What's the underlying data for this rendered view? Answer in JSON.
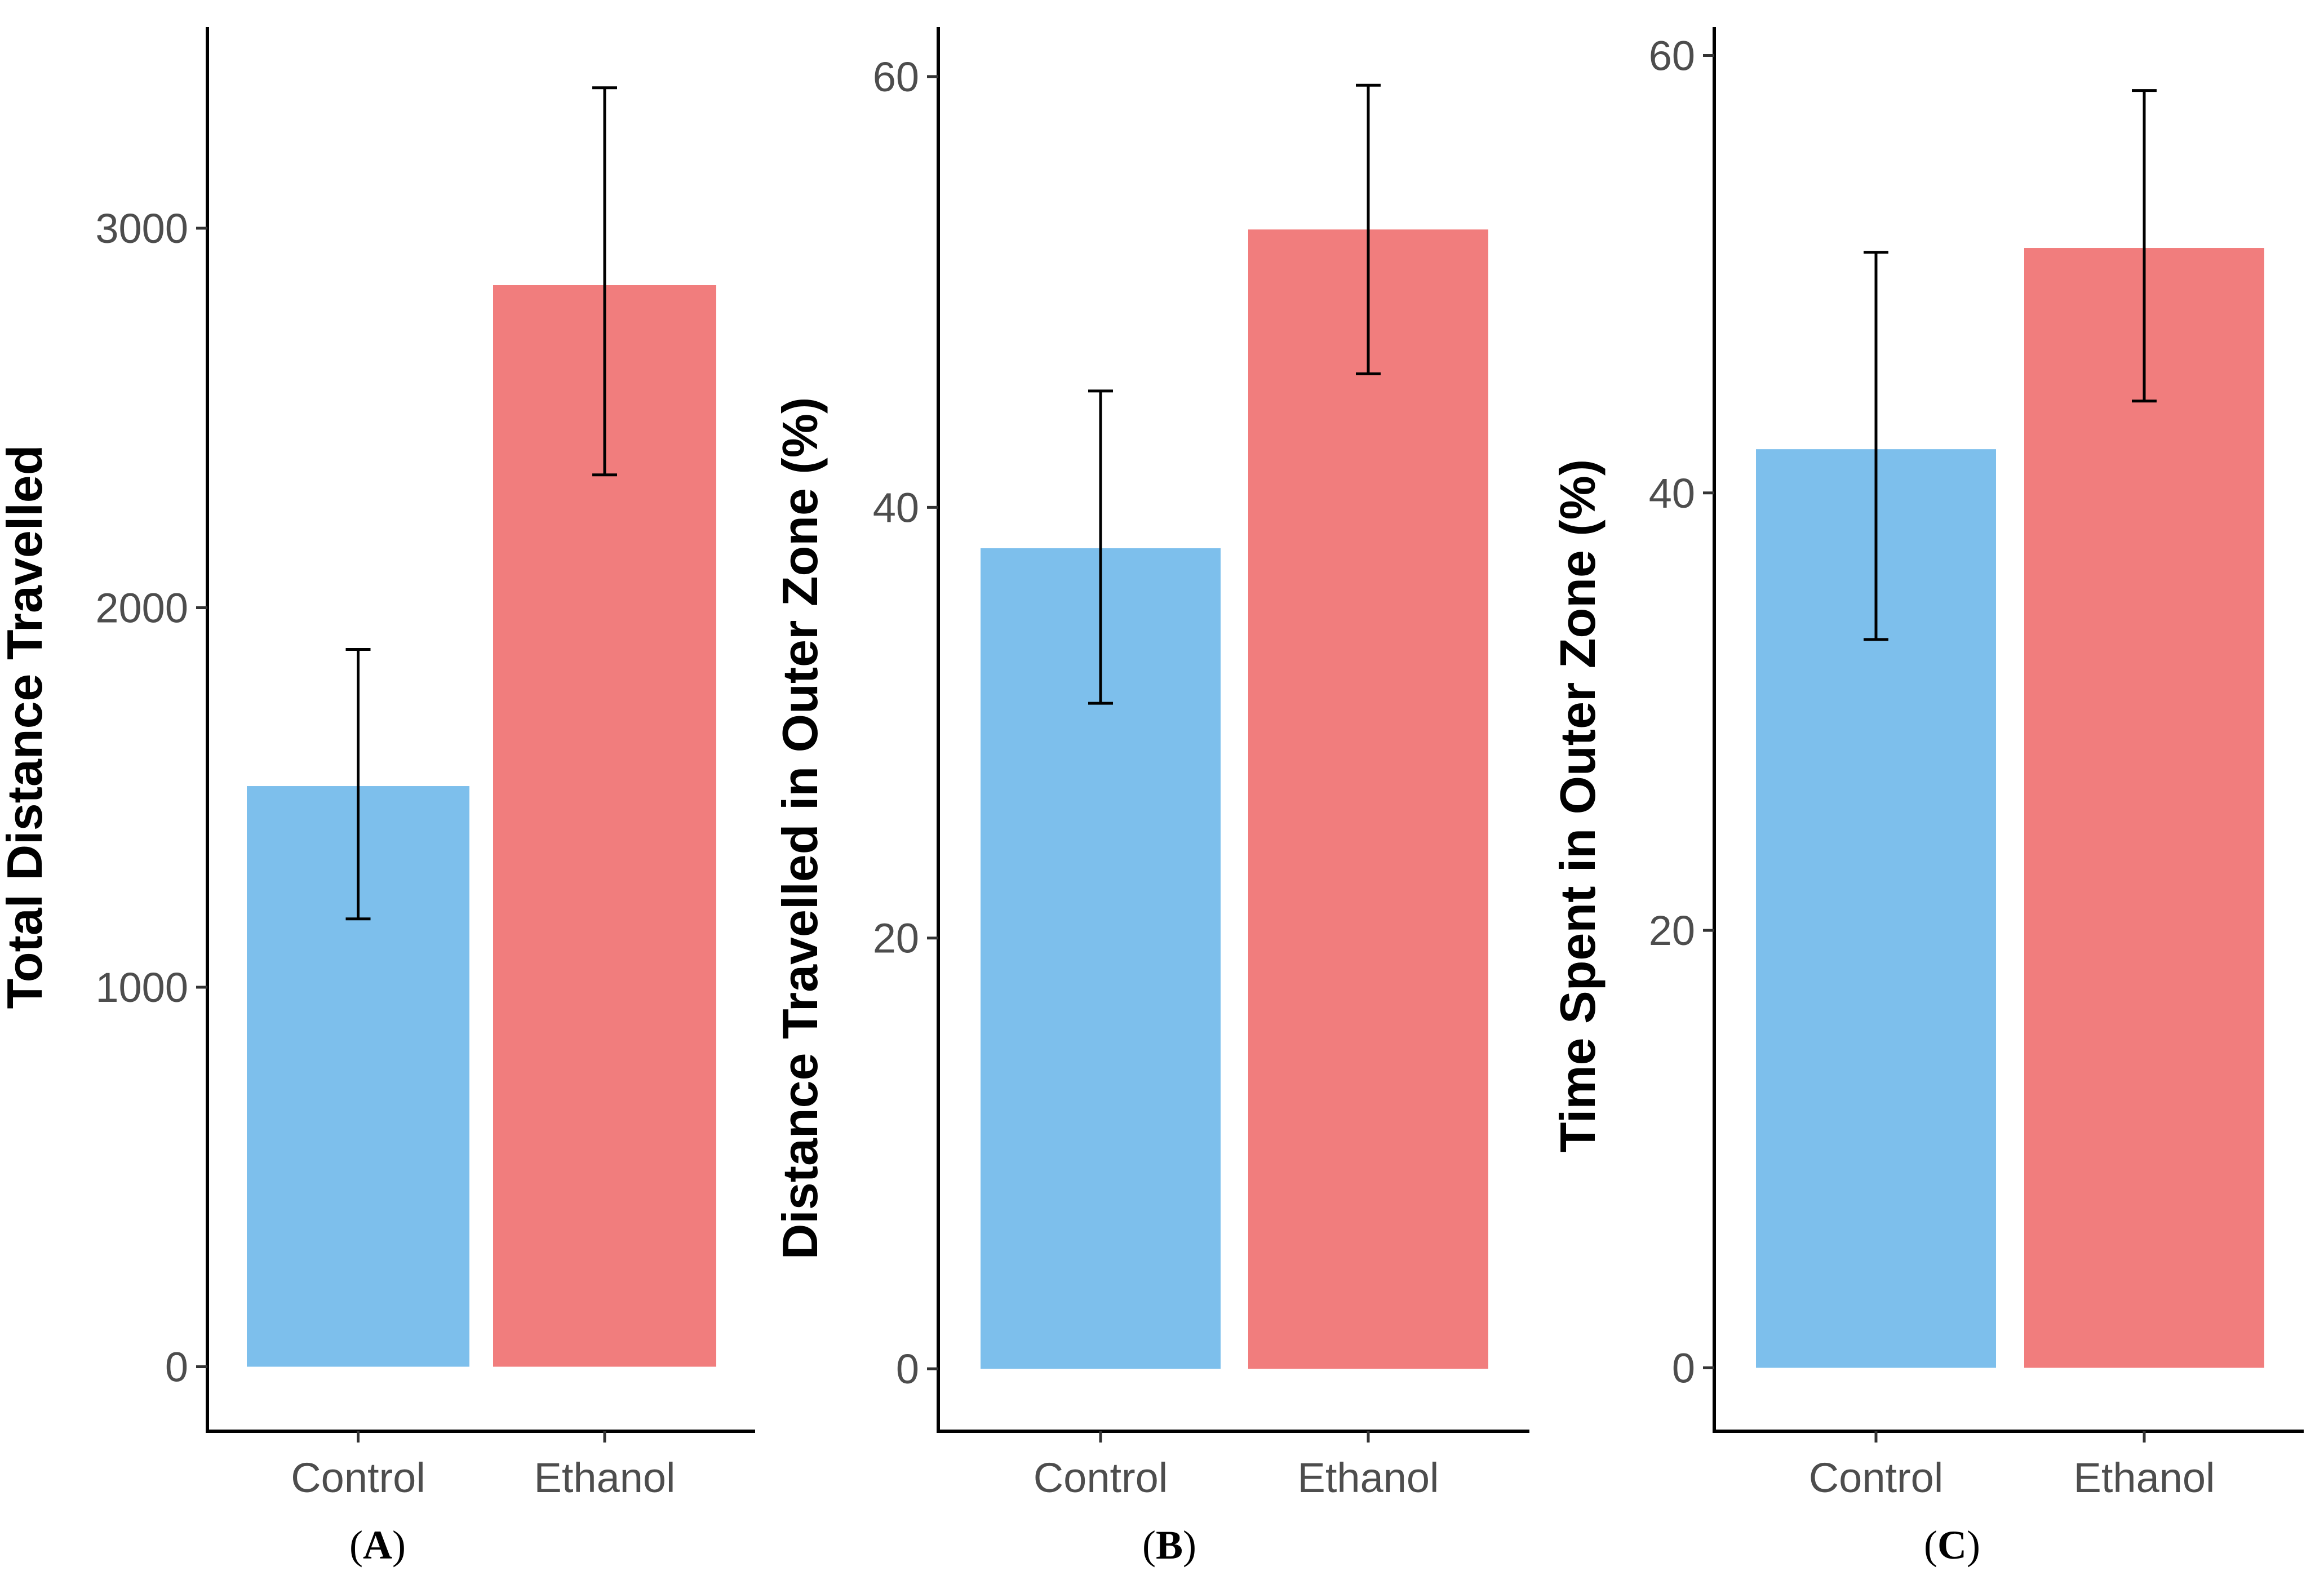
{
  "figure": {
    "colors": {
      "Control": "#7dbfec",
      "Ethanol": "#f17d7d",
      "axis": "#000000",
      "tick_text": "#4d4d4d"
    }
  },
  "chart_data": [
    {
      "type": "bar",
      "panel": "A",
      "categories": [
        "Control",
        "Ethanol"
      ],
      "values": [
        1530,
        2850
      ],
      "error_low": [
        1180,
        2350
      ],
      "error_high": [
        1890,
        3370
      ],
      "title": "",
      "xlabel": "",
      "ylabel": "Total Distance Travelled",
      "ylim": [
        -170,
        3530
      ],
      "yticks": [
        0,
        1000,
        2000,
        3000
      ],
      "ytick_labels": [
        "0",
        "1000",
        "2000",
        "3000"
      ],
      "grid": false,
      "legend": "none"
    },
    {
      "type": "bar",
      "panel": "B",
      "categories": [
        "Control",
        "Ethanol"
      ],
      "values": [
        38.1,
        52.9
      ],
      "error_low": [
        30.9,
        46.2
      ],
      "error_high": [
        45.4,
        59.6
      ],
      "title": "",
      "xlabel": "",
      "ylabel": "Distance Travelled in Outer Zone (%)",
      "ylim": [
        -2.9,
        62.3
      ],
      "yticks": [
        0,
        20,
        40,
        60
      ],
      "ytick_labels": [
        "0",
        "20",
        "40",
        "60"
      ],
      "grid": false,
      "legend": "none"
    },
    {
      "type": "bar",
      "panel": "C",
      "categories": [
        "Control",
        "Ethanol"
      ],
      "values": [
        42.0,
        51.2
      ],
      "error_low": [
        33.3,
        44.2
      ],
      "error_high": [
        51.0,
        58.4
      ],
      "title": "",
      "xlabel": "",
      "ylabel": "Time Spent in Outer Zone (%)",
      "ylim": [
        -2.9,
        61.3
      ],
      "yticks": [
        0,
        20,
        40,
        60
      ],
      "ytick_labels": [
        "0",
        "20",
        "40",
        "60"
      ],
      "grid": false,
      "legend": "none"
    }
  ],
  "panel_labels": [
    {
      "open": "(",
      "letter": "A",
      "close": ")"
    },
    {
      "open": "(",
      "letter": "B",
      "close": ")"
    },
    {
      "open": "(",
      "letter": "C",
      "close": ")"
    }
  ]
}
